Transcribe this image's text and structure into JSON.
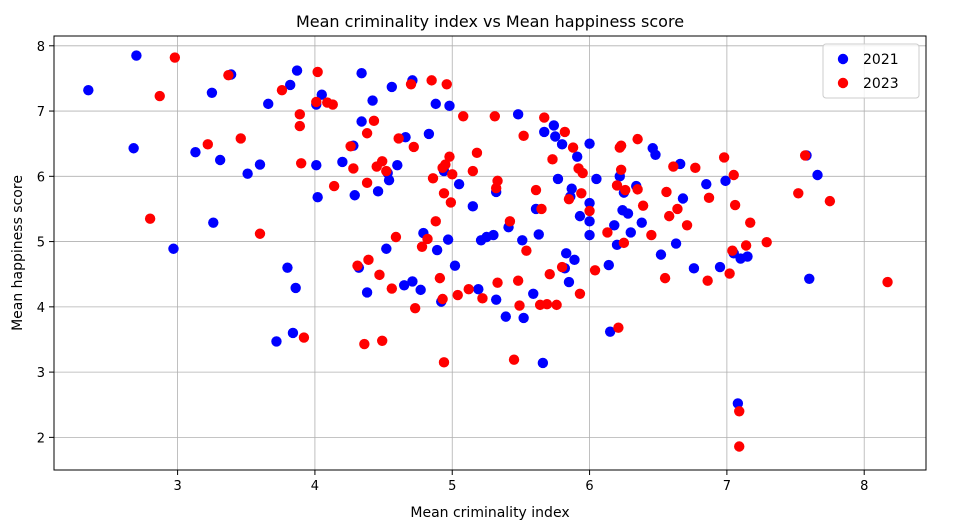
{
  "chart_data": {
    "type": "scatter",
    "title": "Mean criminality index vs Mean happiness score",
    "xlabel": "Mean criminality index",
    "ylabel": "Mean happiness score",
    "xlim": [
      2.1,
      8.45
    ],
    "ylim": [
      1.5,
      8.15
    ],
    "xticks": [
      3,
      4,
      5,
      6,
      7,
      8
    ],
    "yticks": [
      2,
      3,
      4,
      5,
      6,
      7,
      8
    ],
    "grid": true,
    "legend_position": "top-right",
    "series": [
      {
        "name": "2021",
        "color": "#0000ff",
        "points": [
          [
            2.35,
            7.32
          ],
          [
            2.7,
            7.85
          ],
          [
            2.68,
            6.43
          ],
          [
            2.97,
            4.89
          ],
          [
            3.13,
            6.37
          ],
          [
            3.25,
            7.28
          ],
          [
            3.26,
            5.29
          ],
          [
            3.31,
            6.25
          ],
          [
            3.39,
            7.56
          ],
          [
            3.51,
            6.04
          ],
          [
            3.6,
            6.18
          ],
          [
            3.66,
            7.11
          ],
          [
            3.72,
            3.47
          ],
          [
            3.8,
            4.6
          ],
          [
            3.82,
            7.4
          ],
          [
            3.84,
            3.6
          ],
          [
            3.87,
            7.62
          ],
          [
            3.86,
            4.29
          ],
          [
            4.01,
            7.1
          ],
          [
            4.01,
            6.17
          ],
          [
            4.02,
            5.68
          ],
          [
            4.05,
            7.25
          ],
          [
            4.2,
            6.22
          ],
          [
            4.28,
            6.47
          ],
          [
            4.29,
            5.71
          ],
          [
            4.32,
            4.6
          ],
          [
            4.34,
            7.58
          ],
          [
            4.34,
            6.84
          ],
          [
            4.38,
            4.22
          ],
          [
            4.42,
            7.16
          ],
          [
            4.46,
            5.77
          ],
          [
            4.52,
            4.89
          ],
          [
            4.53,
            6.05
          ],
          [
            4.54,
            5.94
          ],
          [
            4.56,
            7.37
          ],
          [
            4.6,
            6.17
          ],
          [
            4.65,
            4.33
          ],
          [
            4.66,
            6.6
          ],
          [
            4.71,
            7.47
          ],
          [
            4.71,
            4.39
          ],
          [
            4.77,
            4.26
          ],
          [
            4.79,
            5.13
          ],
          [
            4.83,
            6.65
          ],
          [
            4.88,
            7.11
          ],
          [
            4.89,
            4.87
          ],
          [
            4.92,
            4.08
          ],
          [
            4.94,
            6.08
          ],
          [
            4.97,
            5.03
          ],
          [
            4.98,
            7.08
          ],
          [
            5.02,
            4.63
          ],
          [
            5.05,
            5.88
          ],
          [
            5.15,
            5.54
          ],
          [
            5.19,
            4.27
          ],
          [
            5.21,
            5.02
          ],
          [
            5.25,
            5.07
          ],
          [
            5.3,
            5.1
          ],
          [
            5.32,
            4.11
          ],
          [
            5.32,
            5.76
          ],
          [
            5.39,
            3.85
          ],
          [
            5.41,
            5.22
          ],
          [
            5.48,
            6.95
          ],
          [
            5.51,
            5.02
          ],
          [
            5.52,
            3.83
          ],
          [
            5.59,
            4.2
          ],
          [
            5.61,
            5.5
          ],
          [
            5.63,
            5.11
          ],
          [
            5.66,
            3.14
          ],
          [
            5.67,
            6.68
          ],
          [
            5.74,
            6.78
          ],
          [
            5.75,
            6.61
          ],
          [
            5.77,
            5.96
          ],
          [
            5.8,
            6.49
          ],
          [
            5.82,
            4.59
          ],
          [
            5.83,
            4.82
          ],
          [
            5.85,
            4.38
          ],
          [
            5.86,
            5.69
          ],
          [
            5.87,
            5.81
          ],
          [
            5.89,
            4.72
          ],
          [
            5.91,
            6.3
          ],
          [
            5.93,
            5.39
          ],
          [
            6.0,
            5.31
          ],
          [
            6.0,
            5.59
          ],
          [
            6.0,
            6.5
          ],
          [
            6.0,
            5.1
          ],
          [
            6.05,
            5.96
          ],
          [
            6.14,
            4.64
          ],
          [
            6.15,
            3.62
          ],
          [
            6.18,
            5.25
          ],
          [
            6.2,
            4.95
          ],
          [
            6.22,
            6.0
          ],
          [
            6.24,
            5.48
          ],
          [
            6.25,
            5.75
          ],
          [
            6.28,
            5.43
          ],
          [
            6.3,
            5.14
          ],
          [
            6.34,
            5.85
          ],
          [
            6.38,
            5.29
          ],
          [
            6.46,
            6.43
          ],
          [
            6.48,
            6.33
          ],
          [
            6.52,
            4.8
          ],
          [
            6.63,
            4.97
          ],
          [
            6.66,
            6.19
          ],
          [
            6.68,
            5.66
          ],
          [
            6.76,
            4.59
          ],
          [
            6.85,
            5.88
          ],
          [
            6.95,
            4.61
          ],
          [
            6.99,
            5.93
          ],
          [
            7.05,
            4.82
          ],
          [
            7.08,
            2.52
          ],
          [
            7.1,
            4.74
          ],
          [
            7.15,
            4.77
          ],
          [
            7.58,
            6.32
          ],
          [
            7.6,
            4.43
          ],
          [
            7.66,
            6.02
          ]
        ]
      },
      {
        "name": "2023",
        "color": "#ff0000",
        "points": [
          [
            2.8,
            5.35
          ],
          [
            2.87,
            7.23
          ],
          [
            2.98,
            7.82
          ],
          [
            3.22,
            6.49
          ],
          [
            3.37,
            7.55
          ],
          [
            3.46,
            6.58
          ],
          [
            3.6,
            5.12
          ],
          [
            3.76,
            7.32
          ],
          [
            3.89,
            6.95
          ],
          [
            3.89,
            6.77
          ],
          [
            3.9,
            6.2
          ],
          [
            3.92,
            3.53
          ],
          [
            4.01,
            7.14
          ],
          [
            4.02,
            7.6
          ],
          [
            4.09,
            7.13
          ],
          [
            4.13,
            7.1
          ],
          [
            4.14,
            5.85
          ],
          [
            4.26,
            6.46
          ],
          [
            4.28,
            6.12
          ],
          [
            4.31,
            4.63
          ],
          [
            4.36,
            3.43
          ],
          [
            4.38,
            6.66
          ],
          [
            4.38,
            5.9
          ],
          [
            4.39,
            4.72
          ],
          [
            4.43,
            6.85
          ],
          [
            4.45,
            6.15
          ],
          [
            4.47,
            4.49
          ],
          [
            4.49,
            3.48
          ],
          [
            4.49,
            6.23
          ],
          [
            4.52,
            6.08
          ],
          [
            4.56,
            4.28
          ],
          [
            4.59,
            5.07
          ],
          [
            4.61,
            6.58
          ],
          [
            4.7,
            7.41
          ],
          [
            4.72,
            6.45
          ],
          [
            4.73,
            3.98
          ],
          [
            4.78,
            4.92
          ],
          [
            4.82,
            5.04
          ],
          [
            4.85,
            7.47
          ],
          [
            4.86,
            5.97
          ],
          [
            4.88,
            5.31
          ],
          [
            4.91,
            4.44
          ],
          [
            4.93,
            4.12
          ],
          [
            4.93,
            6.13
          ],
          [
            4.94,
            5.74
          ],
          [
            4.94,
            3.15
          ],
          [
            4.95,
            6.18
          ],
          [
            4.96,
            7.41
          ],
          [
            4.98,
            6.3
          ],
          [
            4.99,
            5.6
          ],
          [
            5.0,
            6.03
          ],
          [
            5.04,
            4.18
          ],
          [
            5.08,
            6.92
          ],
          [
            5.12,
            4.27
          ],
          [
            5.15,
            6.08
          ],
          [
            5.18,
            6.36
          ],
          [
            5.22,
            4.13
          ],
          [
            5.31,
            6.92
          ],
          [
            5.32,
            5.82
          ],
          [
            5.33,
            5.93
          ],
          [
            5.33,
            4.37
          ],
          [
            5.42,
            5.31
          ],
          [
            5.45,
            3.19
          ],
          [
            5.48,
            4.4
          ],
          [
            5.49,
            4.02
          ],
          [
            5.52,
            6.62
          ],
          [
            5.54,
            4.86
          ],
          [
            5.61,
            5.79
          ],
          [
            5.64,
            4.03
          ],
          [
            5.65,
            5.5
          ],
          [
            5.67,
            6.9
          ],
          [
            5.69,
            4.04
          ],
          [
            5.71,
            4.5
          ],
          [
            5.73,
            6.26
          ],
          [
            5.76,
            4.03
          ],
          [
            5.8,
            4.61
          ],
          [
            5.82,
            6.68
          ],
          [
            5.85,
            5.65
          ],
          [
            5.88,
            6.44
          ],
          [
            5.92,
            6.12
          ],
          [
            5.93,
            4.2
          ],
          [
            5.94,
            5.74
          ],
          [
            5.95,
            6.05
          ],
          [
            6.0,
            5.47
          ],
          [
            6.04,
            4.56
          ],
          [
            6.13,
            5.14
          ],
          [
            6.2,
            5.86
          ],
          [
            6.21,
            3.68
          ],
          [
            6.22,
            6.44
          ],
          [
            6.23,
            6.1
          ],
          [
            6.23,
            6.47
          ],
          [
            6.25,
            4.98
          ],
          [
            6.26,
            5.79
          ],
          [
            6.35,
            6.57
          ],
          [
            6.35,
            5.8
          ],
          [
            6.39,
            5.55
          ],
          [
            6.45,
            5.1
          ],
          [
            6.55,
            4.44
          ],
          [
            6.56,
            5.76
          ],
          [
            6.58,
            5.39
          ],
          [
            6.61,
            6.15
          ],
          [
            6.64,
            5.5
          ],
          [
            6.71,
            5.25
          ],
          [
            6.77,
            6.13
          ],
          [
            6.86,
            4.4
          ],
          [
            6.87,
            5.67
          ],
          [
            6.98,
            6.29
          ],
          [
            7.02,
            4.51
          ],
          [
            7.04,
            4.86
          ],
          [
            7.05,
            6.02
          ],
          [
            7.06,
            5.56
          ],
          [
            7.09,
            1.86
          ],
          [
            7.09,
            2.4
          ],
          [
            7.14,
            4.94
          ],
          [
            7.17,
            5.29
          ],
          [
            7.29,
            4.99
          ],
          [
            7.52,
            5.74
          ],
          [
            7.57,
            6.32
          ],
          [
            7.75,
            5.62
          ],
          [
            8.17,
            4.38
          ]
        ]
      }
    ]
  }
}
